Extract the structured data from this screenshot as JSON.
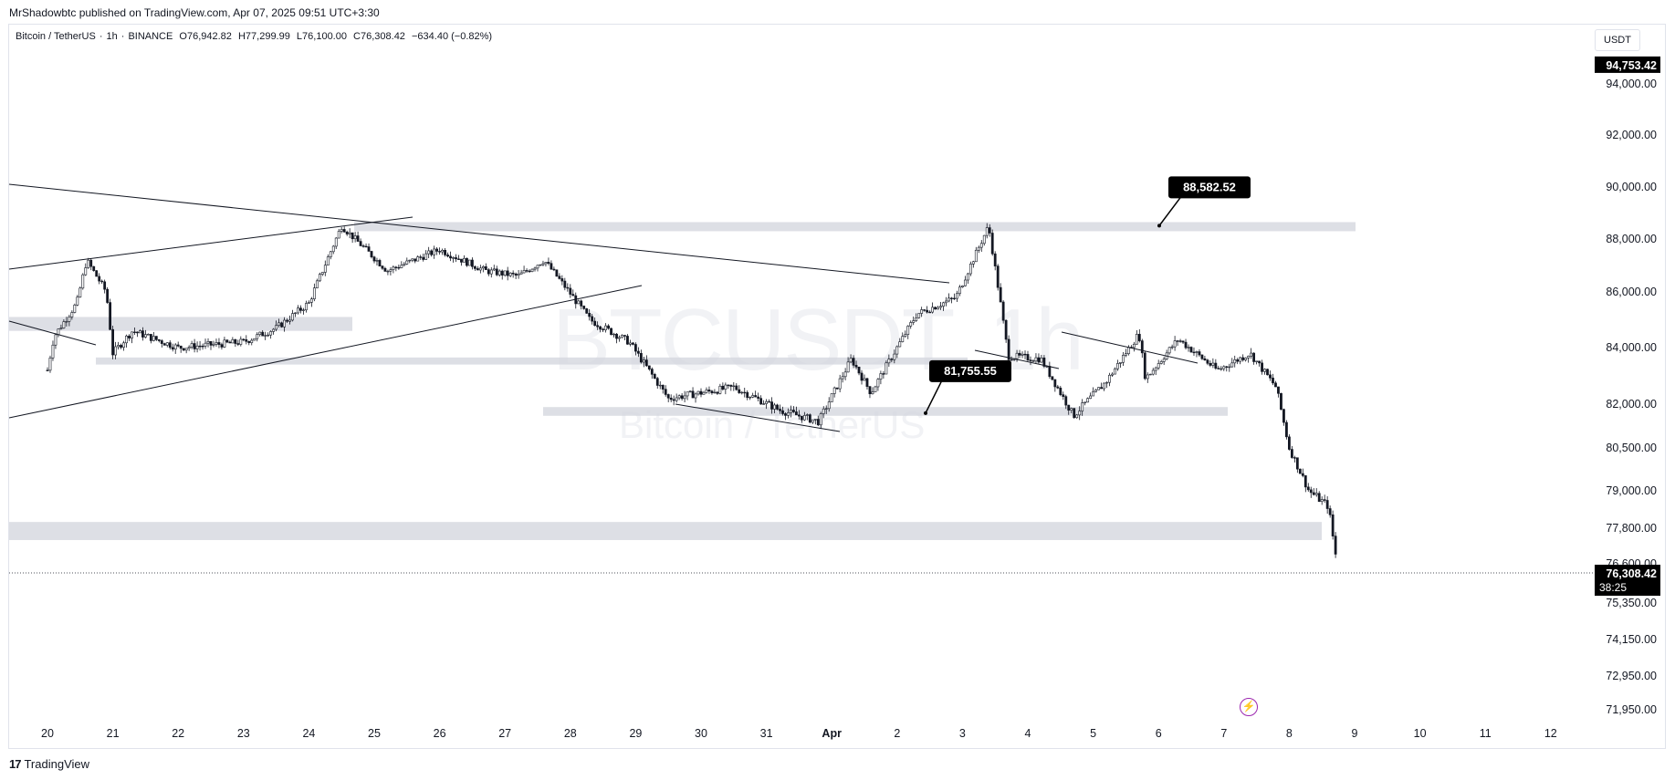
{
  "header": {
    "published": "MrShadowbtc published on TradingView.com, Apr 07, 2025 09:51 UTC+3:30"
  },
  "symbol": {
    "name": "Bitcoin / TetherUS",
    "interval": "1h",
    "exchange": "BINANCE",
    "open": "O76,942.82",
    "high": "H77,299.99",
    "low": "L76,100.00",
    "close": "C76,308.42",
    "change": "−634.40 (−0.82%)"
  },
  "watermark": {
    "ticker": "BTCUSDT, 1h",
    "description": "Bitcoin / TetherUS"
  },
  "currency": "USDT",
  "brand": "TradingView",
  "colors": {
    "candle": "#131722",
    "zone": "#d1d4dc",
    "label_bg": "#000000",
    "label_text": "#ffffff"
  },
  "chart_data": {
    "type": "candlestick",
    "x_tick_labels": [
      "20",
      "21",
      "22",
      "23",
      "24",
      "25",
      "26",
      "27",
      "28",
      "29",
      "30",
      "31",
      "Apr",
      "2",
      "3",
      "4",
      "5",
      "6",
      "7",
      "8",
      "9",
      "10",
      "11",
      "12"
    ],
    "y_tick_labels": [
      "94,000.00",
      "92,000.00",
      "90,000.00",
      "88,000.00",
      "86,000.00",
      "84,000.00",
      "82,000.00",
      "80,500.00",
      "79,000.00",
      "77,800.00",
      "76,600.00",
      "75,350.00",
      "74,150.00",
      "72,950.00",
      "71,950.00"
    ],
    "y_range": [
      71600,
      95000
    ],
    "price_labels": {
      "top": "94,753.42",
      "current": "76,308.42",
      "countdown": "38:25"
    },
    "annotations": [
      {
        "text": "88,582.52",
        "price": 88582.52,
        "date": "Apr 5"
      },
      {
        "text": "81,755.55",
        "price": 81755.55,
        "date": "Apr 2"
      }
    ],
    "zones": [
      {
        "from": "Mar 20",
        "to": "Mar 25",
        "low": 84600,
        "high": 85100
      },
      {
        "from": "Mar 21",
        "to": "Apr 3",
        "low": 83400,
        "high": 83650
      },
      {
        "from": "Mar 29",
        "to": "Apr 6",
        "low": 81600,
        "high": 81900
      },
      {
        "from": "Mar 24",
        "to": "Apr 8",
        "low": 88300,
        "high": 88650
      },
      {
        "from": "Mar 20",
        "to": "Apr 8",
        "low": 77400,
        "high": 78000
      }
    ],
    "key_closes": [
      {
        "date": "Mar 20",
        "price": 83200
      },
      {
        "date": "Mar 20 12h",
        "price": 87200
      },
      {
        "date": "Mar 21",
        "price": 83800
      },
      {
        "date": "Mar 24",
        "price": 84800
      },
      {
        "date": "Mar 25",
        "price": 88500
      },
      {
        "date": "Mar 28",
        "price": 86700
      },
      {
        "date": "Mar 30",
        "price": 82200
      },
      {
        "date": "Mar 31",
        "price": 81500
      },
      {
        "date": "Apr 2",
        "price": 85200
      },
      {
        "date": "Apr 3",
        "price": 88500
      },
      {
        "date": "Apr 3 late",
        "price": 83700
      },
      {
        "date": "Apr 4",
        "price": 81600
      },
      {
        "date": "Apr 5",
        "price": 84500
      },
      {
        "date": "Apr 6",
        "price": 83300
      },
      {
        "date": "Apr 7",
        "price": 79000
      },
      {
        "date": "Apr 7 now",
        "price": 76308.42
      }
    ]
  }
}
